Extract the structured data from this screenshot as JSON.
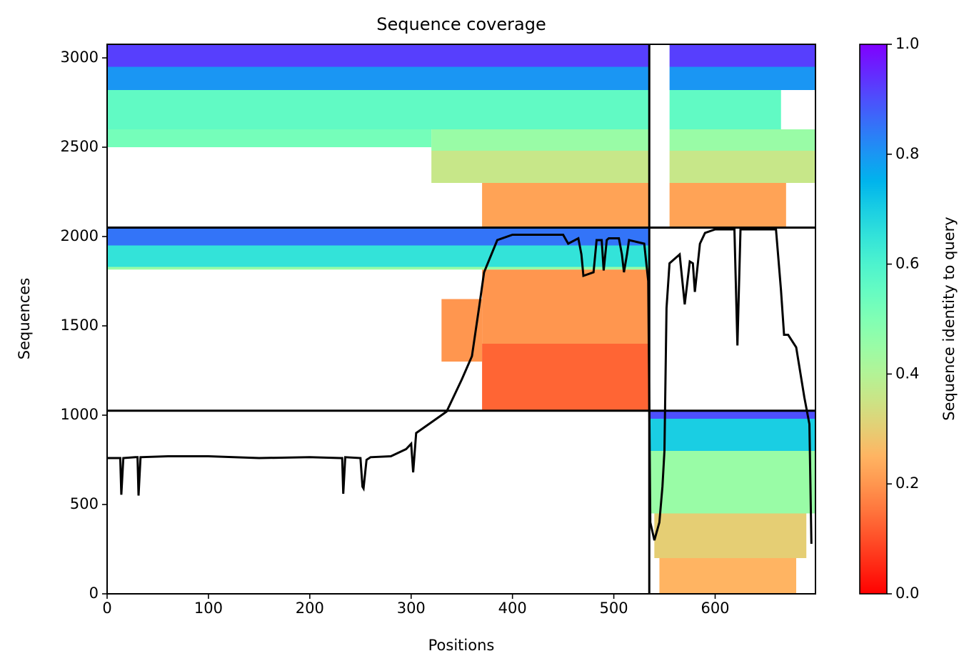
{
  "chart_data": {
    "type": "msa_coverage",
    "title": "Sequence coverage",
    "x_label": "Positions",
    "y_label": "Sequences",
    "xlim": [
      0,
      699
    ],
    "ylim": [
      0,
      3076
    ],
    "xticks": [
      0,
      100,
      200,
      300,
      400,
      500,
      600
    ],
    "yticks": [
      0,
      500,
      1000,
      1500,
      2000,
      2500,
      3000
    ],
    "colormap": "rainbow_r",
    "bands": [
      {
        "x0": 0,
        "x1": 535,
        "y0": 2950,
        "y1": 3076,
        "identity": 0.92
      },
      {
        "x0": 0,
        "x1": 535,
        "y0": 2820,
        "y1": 2950,
        "identity": 0.8
      },
      {
        "x0": 0,
        "x1": 535,
        "y0": 2600,
        "y1": 2820,
        "identity": 0.56
      },
      {
        "x0": 0,
        "x1": 320,
        "y0": 2500,
        "y1": 2600,
        "identity": 0.52
      },
      {
        "x0": 320,
        "x1": 535,
        "y0": 2480,
        "y1": 2600,
        "identity": 0.45
      },
      {
        "x0": 320,
        "x1": 535,
        "y0": 2300,
        "y1": 2480,
        "identity": 0.36
      },
      {
        "x0": 370,
        "x1": 535,
        "y0": 2050,
        "y1": 2300,
        "identity": 0.22
      },
      {
        "x0": 555,
        "x1": 699,
        "y0": 2950,
        "y1": 3076,
        "identity": 0.92
      },
      {
        "x0": 555,
        "x1": 699,
        "y0": 2820,
        "y1": 2950,
        "identity": 0.8
      },
      {
        "x0": 555,
        "x1": 665,
        "y0": 2600,
        "y1": 2820,
        "identity": 0.56
      },
      {
        "x0": 555,
        "x1": 699,
        "y0": 2480,
        "y1": 2600,
        "identity": 0.45
      },
      {
        "x0": 555,
        "x1": 699,
        "y0": 2300,
        "y1": 2480,
        "identity": 0.36
      },
      {
        "x0": 555,
        "x1": 670,
        "y0": 2050,
        "y1": 2300,
        "identity": 0.22
      },
      {
        "x0": 0,
        "x1": 535,
        "y0": 1950,
        "y1": 2050,
        "identity": 0.85
      },
      {
        "x0": 0,
        "x1": 535,
        "y0": 1830,
        "y1": 1950,
        "identity": 0.65
      },
      {
        "x0": 0,
        "x1": 535,
        "y0": 1815,
        "y1": 1830,
        "identity": 0.45
      },
      {
        "x0": 330,
        "x1": 370,
        "y0": 1300,
        "y1": 1650,
        "identity": 0.2
      },
      {
        "x0": 370,
        "x1": 535,
        "y0": 1400,
        "y1": 1815,
        "identity": 0.2
      },
      {
        "x0": 370,
        "x1": 535,
        "y0": 1025,
        "y1": 1400,
        "identity": 0.13
      },
      {
        "x0": 535,
        "x1": 699,
        "y0": 980,
        "y1": 1025,
        "identity": 0.9
      },
      {
        "x0": 535,
        "x1": 699,
        "y0": 800,
        "y1": 980,
        "identity": 0.7
      },
      {
        "x0": 535,
        "x1": 699,
        "y0": 450,
        "y1": 800,
        "identity": 0.45
      },
      {
        "x0": 540,
        "x1": 690,
        "y0": 200,
        "y1": 450,
        "identity": 0.3
      },
      {
        "x0": 545,
        "x1": 680,
        "y0": 0,
        "y1": 200,
        "identity": 0.25
      }
    ],
    "coverage": {
      "color": "#000000",
      "x": [
        0,
        10,
        13,
        14,
        16,
        28,
        30,
        31,
        33,
        60,
        100,
        150,
        200,
        230,
        232,
        233,
        235,
        250,
        252,
        253,
        256,
        260,
        280,
        295,
        300,
        302,
        305,
        320,
        335,
        350,
        360,
        367,
        372,
        385,
        400,
        450,
        455,
        465,
        468,
        470,
        480,
        483,
        488,
        490,
        493,
        495,
        505,
        508,
        510,
        513,
        515,
        530,
        534,
        536,
        540,
        545,
        548,
        550,
        552,
        555,
        565,
        570,
        575,
        578,
        580,
        585,
        590,
        600,
        619,
        622,
        625,
        660,
        665,
        668,
        672,
        680,
        688,
        693,
        695
      ],
      "values": [
        760,
        760,
        760,
        555,
        760,
        765,
        765,
        550,
        765,
        770,
        770,
        760,
        765,
        760,
        760,
        560,
        765,
        760,
        600,
        590,
        750,
        765,
        770,
        810,
        840,
        680,
        900,
        960,
        1020,
        1200,
        1330,
        1600,
        1800,
        1980,
        2010,
        2010,
        1960,
        1990,
        1900,
        1780,
        1800,
        1980,
        1980,
        1810,
        1980,
        1990,
        1990,
        1900,
        1800,
        1900,
        1980,
        1960,
        1750,
        400,
        300,
        400,
        600,
        800,
        1600,
        1850,
        1900,
        1620,
        1860,
        1850,
        1690,
        1960,
        2020,
        2040,
        2040,
        1390,
        2040,
        2040,
        1700,
        1450,
        1450,
        1380,
        1100,
        950,
        280
      ]
    },
    "dividers": {
      "x": [
        535
      ],
      "y": [
        1025,
        2050
      ]
    },
    "colorbar": {
      "label": "Sequence identity to query",
      "lim": [
        0,
        1
      ],
      "ticks": [
        {
          "value": 0,
          "label": "0.0"
        },
        {
          "value": 0.2,
          "label": "0.2"
        },
        {
          "value": 0.4,
          "label": "0.4"
        },
        {
          "value": 0.6,
          "label": "0.6"
        },
        {
          "value": 0.8,
          "label": "0.8"
        },
        {
          "value": 1,
          "label": "1.0"
        }
      ]
    }
  }
}
